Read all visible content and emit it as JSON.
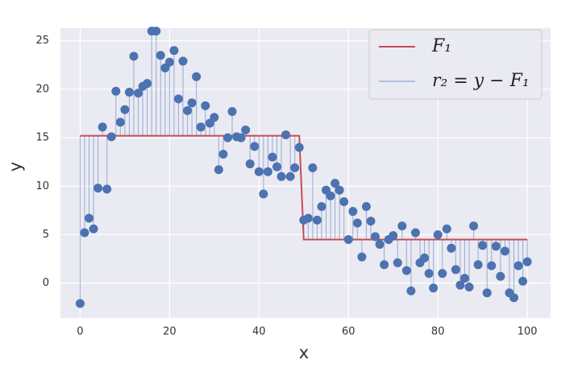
{
  "chart_data": {
    "type": "scatter",
    "x_label": "x",
    "y_label": "y",
    "x": [
      0,
      1,
      2,
      3,
      4,
      5,
      6,
      7,
      8,
      9,
      10,
      11,
      12,
      13,
      14,
      15,
      16,
      17,
      18,
      19,
      20,
      21,
      22,
      23,
      24,
      25,
      26,
      27,
      28,
      29,
      30,
      31,
      32,
      33,
      34,
      35,
      36,
      37,
      38,
      39,
      40,
      41,
      42,
      43,
      44,
      45,
      46,
      47,
      48,
      49,
      50,
      51,
      52,
      53,
      54,
      55,
      56,
      57,
      58,
      59,
      60,
      61,
      62,
      63,
      64,
      65,
      66,
      67,
      68,
      69,
      70,
      71,
      72,
      73,
      74,
      75,
      76,
      77,
      78,
      79,
      80,
      81,
      82,
      83,
      84,
      85,
      86,
      87,
      88,
      89,
      90,
      91,
      92,
      93,
      94,
      95,
      96,
      97,
      98,
      99,
      100
    ],
    "values": [
      -2.1,
      5.2,
      6.7,
      5.6,
      9.8,
      16.1,
      9.7,
      15.1,
      19.8,
      16.6,
      17.9,
      19.7,
      23.4,
      19.6,
      20.3,
      20.6,
      26.0,
      26.0,
      23.5,
      22.2,
      22.8,
      24.0,
      19.0,
      22.9,
      17.8,
      18.6,
      21.3,
      16.1,
      18.3,
      16.5,
      17.1,
      11.7,
      13.3,
      15.0,
      17.7,
      15.1,
      15.0,
      15.8,
      12.3,
      14.1,
      11.5,
      9.2,
      11.5,
      13.0,
      12.0,
      11.0,
      15.3,
      11.0,
      11.9,
      14.0,
      6.5,
      6.7,
      11.9,
      6.5,
      7.9,
      9.6,
      9.0,
      10.3,
      9.6,
      8.4,
      4.5,
      7.4,
      6.2,
      2.7,
      7.9,
      6.4,
      4.8,
      4.0,
      1.9,
      4.5,
      4.9,
      2.1,
      5.9,
      1.3,
      -0.8,
      5.2,
      2.1,
      2.6,
      1.0,
      -0.5,
      5.0,
      1.0,
      5.6,
      3.6,
      1.4,
      -0.2,
      0.5,
      -0.4,
      5.9,
      1.9,
      3.9,
      -1.0,
      1.8,
      3.8,
      0.7,
      3.3,
      -1.0,
      -1.5,
      1.8,
      0.2,
      2.2
    ],
    "color": "#4c72b0",
    "series": [
      {
        "name": "F₁",
        "color": "#c44e52",
        "x": [
          0,
          49,
          50,
          100
        ],
        "values": [
          15.2,
          15.2,
          4.5,
          4.5
        ]
      },
      {
        "name": "r₂ = y − F₁",
        "color": "#8ea6d4"
      }
    ],
    "xlim": [
      -4.4,
      105.2
    ],
    "ylim": [
      -3.6,
      26.3
    ],
    "xticks": [
      0,
      20,
      40,
      60,
      80,
      100
    ],
    "yticks": [
      0,
      5,
      10,
      15,
      20,
      25
    ],
    "grid": true,
    "legend": "upper right"
  }
}
